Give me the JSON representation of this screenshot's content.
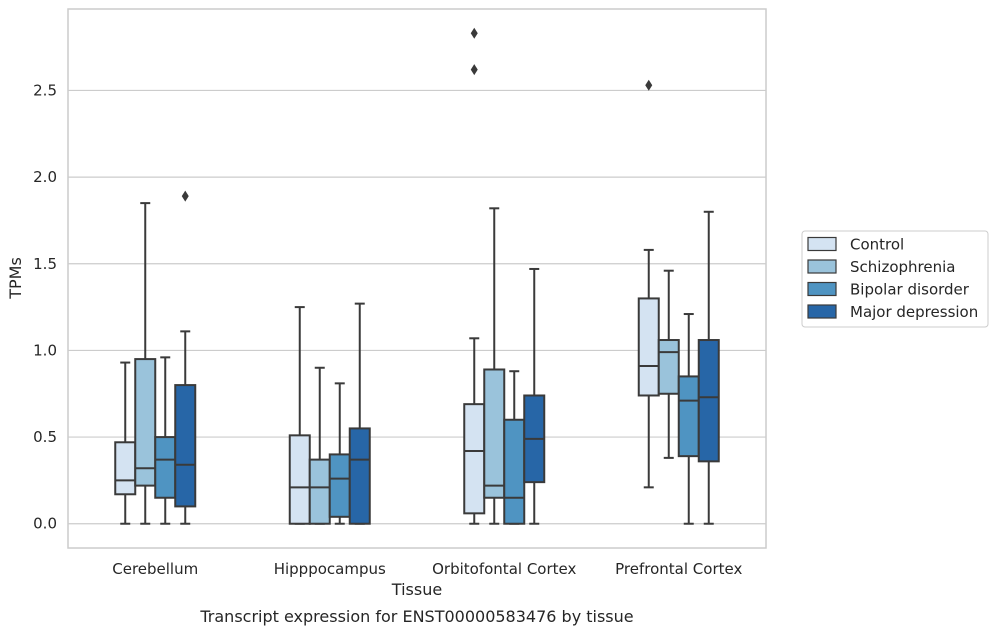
{
  "caption": "Transcript expression for ENST00000583476 by tissue",
  "chart_data": {
    "type": "box",
    "xlabel": "Tissue",
    "ylabel": "TPMs",
    "ylim": [
      -0.14,
      2.97
    ],
    "yticks": [
      0.0,
      0.5,
      1.0,
      1.5,
      2.0,
      2.5
    ],
    "ytick_labels": [
      "0.0",
      "0.5",
      "1.0",
      "1.5",
      "2.0",
      "2.5"
    ],
    "grid": "horizontal",
    "legend_position": "right",
    "categories": [
      "Cerebellum",
      "Hipppocampus",
      "Orbitofontal Cortex",
      "Prefrontal Cortex"
    ],
    "series": [
      {
        "name": "Control",
        "color": "#d4e3f2",
        "boxes": [
          {
            "whislo": 0.0,
            "q1": 0.17,
            "med": 0.25,
            "q3": 0.47,
            "whishi": 0.93,
            "fliers": []
          },
          {
            "whislo": 0.0,
            "q1": 0.0,
            "med": 0.21,
            "q3": 0.51,
            "whishi": 1.25,
            "fliers": []
          },
          {
            "whislo": 0.0,
            "q1": 0.06,
            "med": 0.42,
            "q3": 0.69,
            "whishi": 1.07,
            "fliers": [
              2.62,
              2.83
            ]
          },
          {
            "whislo": 0.21,
            "q1": 0.74,
            "med": 0.91,
            "q3": 1.3,
            "whishi": 1.58,
            "fliers": [
              2.53
            ]
          }
        ]
      },
      {
        "name": "Schizophrenia",
        "color": "#9ac3db",
        "boxes": [
          {
            "whislo": 0.0,
            "q1": 0.22,
            "med": 0.32,
            "q3": 0.95,
            "whishi": 1.85,
            "fliers": []
          },
          {
            "whislo": 0.0,
            "q1": 0.0,
            "med": 0.21,
            "q3": 0.37,
            "whishi": 0.9,
            "fliers": []
          },
          {
            "whislo": 0.0,
            "q1": 0.15,
            "med": 0.22,
            "q3": 0.89,
            "whishi": 1.82,
            "fliers": []
          },
          {
            "whislo": 0.38,
            "q1": 0.75,
            "med": 0.99,
            "q3": 1.06,
            "whishi": 1.46,
            "fliers": []
          }
        ]
      },
      {
        "name": "Bipolar disorder",
        "color": "#4f94c2",
        "boxes": [
          {
            "whislo": 0.0,
            "q1": 0.15,
            "med": 0.37,
            "q3": 0.5,
            "whishi": 0.96,
            "fliers": []
          },
          {
            "whislo": 0.0,
            "q1": 0.04,
            "med": 0.26,
            "q3": 0.4,
            "whishi": 0.81,
            "fliers": []
          },
          {
            "whislo": 0.0,
            "q1": 0.0,
            "med": 0.15,
            "q3": 0.6,
            "whishi": 0.88,
            "fliers": []
          },
          {
            "whislo": 0.0,
            "q1": 0.39,
            "med": 0.71,
            "q3": 0.85,
            "whishi": 1.21,
            "fliers": []
          }
        ]
      },
      {
        "name": "Major depression",
        "color": "#2766a7",
        "boxes": [
          {
            "whislo": 0.0,
            "q1": 0.1,
            "med": 0.34,
            "q3": 0.8,
            "whishi": 1.11,
            "fliers": [
              1.89
            ]
          },
          {
            "whislo": 0.0,
            "q1": 0.0,
            "med": 0.37,
            "q3": 0.55,
            "whishi": 1.27,
            "fliers": []
          },
          {
            "whislo": 0.0,
            "q1": 0.24,
            "med": 0.49,
            "q3": 0.74,
            "whishi": 1.47,
            "fliers": []
          },
          {
            "whislo": 0.0,
            "q1": 0.36,
            "med": 0.73,
            "q3": 1.06,
            "whishi": 1.8,
            "fliers": []
          }
        ]
      }
    ]
  }
}
